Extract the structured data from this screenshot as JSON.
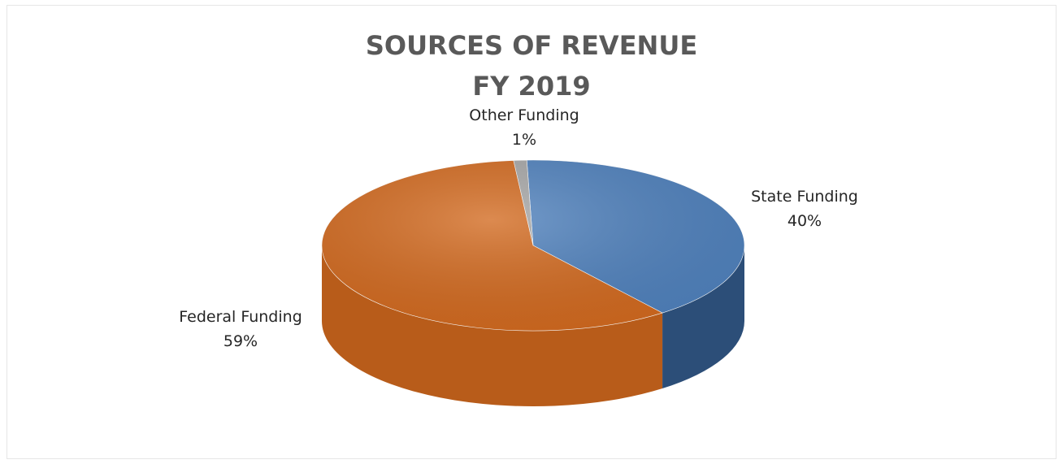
{
  "chart_data": {
    "type": "pie",
    "title": "SOURCES OF REVENUE",
    "subtitle": "FY 2019",
    "slices": [
      {
        "name": "State Funding",
        "value": 40,
        "label": "40%",
        "color": "#4f81bd",
        "side_color": "#2c4e78"
      },
      {
        "name": "Federal Funding",
        "value": 59,
        "label": "59%",
        "color": "#d2691e",
        "side_color": "#b85c1a"
      },
      {
        "name": "Other Funding",
        "value": 1,
        "label": "1%",
        "color": "#a6a6a6",
        "side_color": "#7f7f7f"
      }
    ],
    "legend": "none",
    "style": "3d"
  }
}
